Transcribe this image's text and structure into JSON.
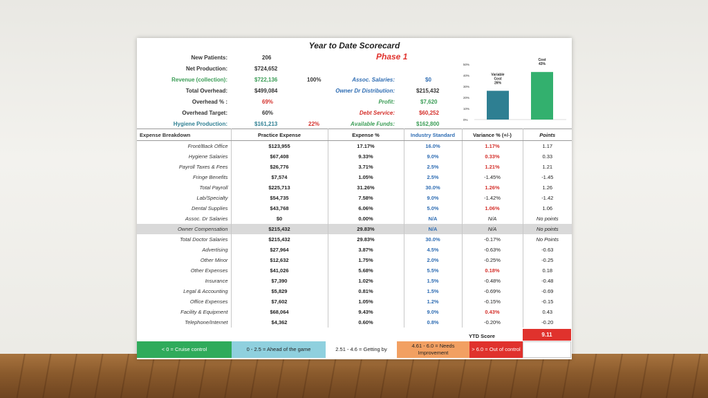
{
  "title": "Year to Date Scorecard",
  "phase": "Phase 1",
  "summary_left": [
    {
      "label": "New Patients:",
      "value": "206"
    },
    {
      "label": "Net Production:",
      "value": "$724,652"
    },
    {
      "label": "Revenue (collection):",
      "value": "$722,136",
      "extra": "100%"
    },
    {
      "label": "Total Overhead:",
      "value": "$499,084"
    },
    {
      "label": "Overhead % :",
      "value": "69%"
    },
    {
      "label": "Overhead Target:",
      "value": "60%"
    },
    {
      "label": "Hygiene Production:",
      "value": "$161,213",
      "extra": "22%"
    }
  ],
  "summary_right": [
    {
      "label": "Assoc. Salaries:",
      "value": "$0"
    },
    {
      "label": "Owner Dr Distribution:",
      "value": "$215,432"
    },
    {
      "label": "Profit:",
      "value": "$7,620"
    },
    {
      "label": "Debt Service:",
      "value": "$60,252"
    },
    {
      "label": "Available Funds:",
      "value": "$162,800"
    }
  ],
  "table": {
    "headers": [
      "Expense Breakdown",
      "Practice Expense",
      "Expense %",
      "Industry Standard",
      "Variance % (+/-)",
      "Points"
    ],
    "rows": [
      [
        "Front/Back Office",
        "$123,955",
        "17.17%",
        "16.0%",
        "1.17%",
        "1.17"
      ],
      [
        "Hygiene Salaries",
        "$67,408",
        "9.33%",
        "9.0%",
        "0.33%",
        "0.33"
      ],
      [
        "Payroll Taxes & Fees",
        "$26,776",
        "3.71%",
        "2.5%",
        "1.21%",
        "1.21"
      ],
      [
        "Fringe Benefits",
        "$7,574",
        "1.05%",
        "2.5%",
        "-1.45%",
        "-1.45"
      ],
      [
        "Total Payroll",
        "$225,713",
        "31.26%",
        "30.0%",
        "1.26%",
        "1.26"
      ],
      [
        "Lab/Specialty",
        "$54,735",
        "7.58%",
        "9.0%",
        "-1.42%",
        "-1.42"
      ],
      [
        "Dental Supplies",
        "$43,768",
        "6.06%",
        "5.0%",
        "1.06%",
        "1.06"
      ],
      [
        "Assoc. Dr Salaries",
        "$0",
        "0.00%",
        "N/A",
        "N/A",
        "No points"
      ],
      [
        "Owner Compensation",
        "$215,432",
        "29.83%",
        "N/A",
        "N/A",
        "No points"
      ],
      [
        "Total Doctor Salaries",
        "$215,432",
        "29.83%",
        "30.0%",
        "-0.17%",
        "No Points"
      ],
      [
        "Advertising",
        "$27,964",
        "3.87%",
        "4.5%",
        "-0.63%",
        "-0.63"
      ],
      [
        "Other Minor",
        "$12,632",
        "1.75%",
        "2.0%",
        "-0.25%",
        "-0.25"
      ],
      [
        "Other Expenses",
        "$41,026",
        "5.68%",
        "5.5%",
        "0.18%",
        "0.18"
      ],
      [
        "Insurance",
        "$7,390",
        "1.02%",
        "1.5%",
        "-0.48%",
        "-0.48"
      ],
      [
        "Legal & Accounting",
        "$5,829",
        "0.81%",
        "1.5%",
        "-0.69%",
        "-0.69"
      ],
      [
        "Office Expenses",
        "$7,602",
        "1.05%",
        "1.2%",
        "-0.15%",
        "-0.15"
      ],
      [
        "Facility & Equipment",
        "$68,064",
        "9.43%",
        "9.0%",
        "0.43%",
        "0.43"
      ],
      [
        "Telephone/Internet",
        "$4,362",
        "0.60%",
        "0.8%",
        "-0.20%",
        "-0.20"
      ]
    ]
  },
  "ytd": {
    "label": "YTD Score",
    "value": "9.11"
  },
  "legend": [
    {
      "text": "< 0 = Cruise control",
      "color": "#2fab5b",
      "text_color": "#ffffff"
    },
    {
      "text": "0 - 2.5 = Ahead of the game",
      "color": "#8fd0de",
      "text_color": "#222222"
    },
    {
      "text": "2.51 - 4.6 = Getting by",
      "color": "#ffffff",
      "text_color": "#222222"
    },
    {
      "text": "4.61 - 6.0 = Needs Improvement",
      "color": "#f2a062",
      "text_color": "#222222"
    },
    {
      "text": "> 6.0 = Out of control",
      "color": "#e0322d",
      "text_color": "#ffffff"
    }
  ],
  "chart_data": {
    "type": "bar",
    "categories": [
      "Variable Cost",
      "Fixed Cost"
    ],
    "category_lines": [
      [
        "Variable",
        "Cost"
      ],
      [
        "Fixed",
        "Cost"
      ]
    ],
    "values": [
      26,
      43
    ],
    "data_labels": [
      "26%",
      "43%"
    ],
    "yticks": [
      "50%",
      "40%",
      "30%",
      "20%",
      "10%",
      "0%"
    ],
    "ylim": [
      0,
      50
    ],
    "colors": [
      "#2e7f92",
      "#33b06e"
    ]
  }
}
